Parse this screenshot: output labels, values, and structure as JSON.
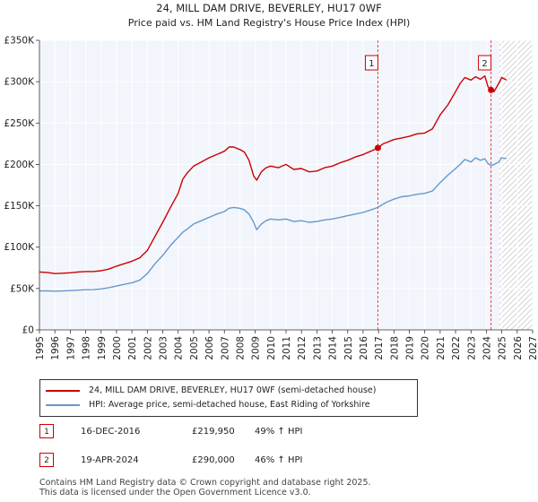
{
  "chart_data": {
    "type": "line",
    "title": "24, MILL DAM DRIVE, BEVERLEY, HU17 0WF",
    "subtitle": "Price paid vs. HM Land Registry's House Price Index (HPI)",
    "xlabel": "",
    "ylabel": "",
    "xlim": [
      1995,
      2027
    ],
    "ylim": [
      0,
      350000
    ],
    "x_ticks": [
      1995,
      1996,
      1997,
      1998,
      1999,
      2000,
      2001,
      2002,
      2003,
      2004,
      2005,
      2006,
      2007,
      2008,
      2009,
      2010,
      2011,
      2012,
      2013,
      2014,
      2015,
      2016,
      2017,
      2018,
      2019,
      2020,
      2021,
      2022,
      2023,
      2024,
      2025,
      2026,
      2027
    ],
    "y_ticks": [
      0,
      50000,
      100000,
      150000,
      200000,
      250000,
      300000,
      350000
    ],
    "y_tick_labels": [
      "£0",
      "£50K",
      "£100K",
      "£150K",
      "£200K",
      "£250K",
      "£300K",
      "£350K"
    ],
    "grid": true,
    "forecast_hatch_from": 2024.83,
    "series": [
      {
        "name": "24, MILL DAM DRIVE, BEVERLEY, HU17 0WF (semi-detached house)",
        "color": "#cc0000",
        "x": [
          1995,
          1995.5,
          1996,
          1996.5,
          1997,
          1997.5,
          1998,
          1998.5,
          1999,
          1999.5,
          2000,
          2000.5,
          2001,
          2001.5,
          2002,
          2002.5,
          2003,
          2003.5,
          2004,
          2004.3,
          2004.6,
          2005,
          2005.5,
          2006,
          2006.5,
          2007,
          2007.3,
          2007.6,
          2008,
          2008.3,
          2008.6,
          2008.9,
          2009.1,
          2009.4,
          2009.7,
          2010,
          2010.5,
          2011,
          2011.5,
          2012,
          2012.5,
          2013,
          2013.5,
          2014,
          2014.5,
          2015,
          2015.5,
          2016,
          2016.5,
          2016.96,
          2017.3,
          2017.6,
          2018,
          2018.5,
          2019,
          2019.5,
          2020,
          2020.5,
          2021,
          2021.5,
          2022,
          2022.3,
          2022.6,
          2023,
          2023.3,
          2023.6,
          2023.9,
          2024.1,
          2024.3,
          2024.5,
          2024.8,
          2025,
          2025.3
        ],
        "values": [
          70000,
          69500,
          68000,
          68500,
          69000,
          70000,
          70500,
          70500,
          71500,
          73500,
          77000,
          80000,
          83000,
          87000,
          96000,
          113000,
          130000,
          148000,
          165000,
          182000,
          190000,
          198000,
          203000,
          208000,
          212000,
          216000,
          221000,
          221000,
          218000,
          215000,
          205000,
          186000,
          181000,
          191000,
          196000,
          198000,
          196000,
          200000,
          194000,
          195000,
          191000,
          192000,
          196000,
          198000,
          202000,
          205000,
          209000,
          212000,
          216000,
          219950,
          225000,
          227000,
          230000,
          232000,
          234000,
          237000,
          238000,
          243000,
          260000,
          272000,
          288000,
          298000,
          305000,
          302000,
          306000,
          303000,
          307000,
          294000,
          290000,
          288000,
          298000,
          305000,
          302000
        ]
      },
      {
        "name": "HPI: Average price, semi-detached house, East Riding of Yorkshire",
        "color": "#6699cc",
        "x": [
          1995,
          1995.5,
          1996,
          1996.5,
          1997,
          1997.5,
          1998,
          1998.5,
          1999,
          1999.5,
          2000,
          2000.5,
          2001,
          2001.5,
          2002,
          2002.5,
          2003,
          2003.5,
          2004,
          2004.3,
          2004.6,
          2005,
          2005.5,
          2006,
          2006.5,
          2007,
          2007.3,
          2007.6,
          2008,
          2008.3,
          2008.6,
          2008.9,
          2009.1,
          2009.4,
          2009.7,
          2010,
          2010.5,
          2011,
          2011.5,
          2012,
          2012.5,
          2013,
          2013.5,
          2014,
          2014.5,
          2015,
          2015.5,
          2016,
          2016.5,
          2016.96,
          2017.3,
          2017.6,
          2018,
          2018.5,
          2019,
          2019.5,
          2020,
          2020.5,
          2021,
          2021.5,
          2022,
          2022.3,
          2022.6,
          2023,
          2023.3,
          2023.6,
          2023.9,
          2024.1,
          2024.3,
          2024.5,
          2024.8,
          2025,
          2025.3
        ],
        "values": [
          47000,
          47200,
          46800,
          47000,
          47500,
          48000,
          48500,
          48700,
          49500,
          51000,
          53000,
          55000,
          57000,
          60000,
          68000,
          80000,
          90000,
          102000,
          112000,
          118000,
          122000,
          128000,
          132000,
          136000,
          140000,
          143000,
          147000,
          148000,
          147000,
          145000,
          140000,
          130000,
          121000,
          128000,
          132000,
          134000,
          133000,
          134000,
          131000,
          132000,
          130000,
          131000,
          133000,
          134000,
          136000,
          138000,
          140000,
          142000,
          145000,
          148000,
          152000,
          155000,
          158000,
          161000,
          162000,
          164000,
          165000,
          168000,
          178000,
          187000,
          195000,
          200000,
          206000,
          203000,
          208000,
          205000,
          207000,
          201000,
          199000,
          200000,
          203000,
          208000,
          207000
        ]
      }
    ],
    "annotations": [
      {
        "label": "1",
        "x": 2016.96,
        "value": 219950
      },
      {
        "label": "2",
        "x": 2024.3,
        "value": 290000
      }
    ]
  },
  "legend": {
    "items": [
      {
        "label": "24, MILL DAM DRIVE, BEVERLEY, HU17 0WF (semi-detached house)",
        "color": "#cc0000"
      },
      {
        "label": "HPI: Average price, semi-detached house, East Riding of Yorkshire",
        "color": "#6699cc"
      }
    ]
  },
  "transactions": [
    {
      "num": "1",
      "date": "16-DEC-2016",
      "price": "£219,950",
      "hpi": "49% ↑ HPI"
    },
    {
      "num": "2",
      "date": "19-APR-2024",
      "price": "£290,000",
      "hpi": "46% ↑ HPI"
    }
  ],
  "footer": {
    "line1": "Contains HM Land Registry data © Crown copyright and database right 2025.",
    "line2": "This data is licensed under the Open Government Licence v3.0."
  }
}
